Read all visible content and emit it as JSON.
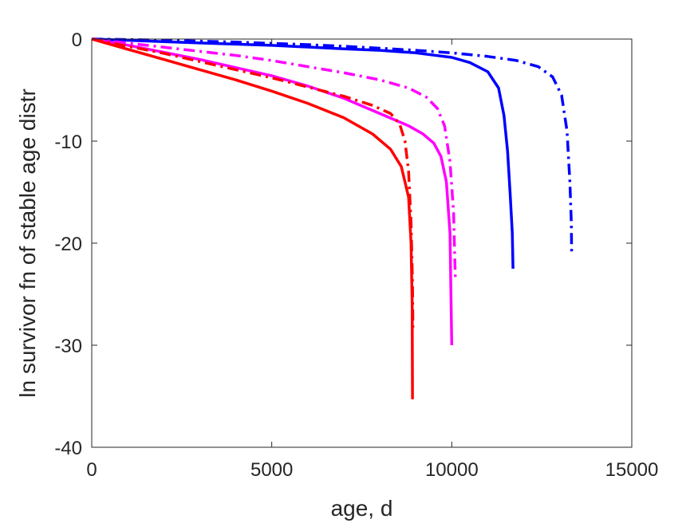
{
  "chart_data": {
    "type": "line",
    "title": "",
    "xlabel": "age, d",
    "ylabel": "ln survivor fn of stable age distr",
    "xlim": [
      0,
      15000
    ],
    "ylim": [
      -40,
      0
    ],
    "xticks": [
      "0",
      "5000",
      "10000",
      "15000"
    ],
    "yticks": [
      "0",
      "-10",
      "-20",
      "-30",
      "-40"
    ],
    "grid": false,
    "legend": "none",
    "series": [
      {
        "color": "#0000ff",
        "dash": "solid",
        "points": [
          [
            0,
            0
          ],
          [
            1000,
            -0.12
          ],
          [
            2000,
            -0.25
          ],
          [
            3000,
            -0.38
          ],
          [
            4000,
            -0.5
          ],
          [
            5000,
            -0.62
          ],
          [
            6000,
            -0.78
          ],
          [
            7000,
            -0.95
          ],
          [
            8000,
            -1.1
          ],
          [
            9000,
            -1.35
          ],
          [
            10000,
            -1.8
          ],
          [
            10500,
            -2.3
          ],
          [
            11000,
            -3.2
          ],
          [
            11300,
            -4.8
          ],
          [
            11450,
            -7.5
          ],
          [
            11550,
            -11
          ],
          [
            11620,
            -15
          ],
          [
            11680,
            -19
          ],
          [
            11700,
            -22.5
          ]
        ]
      },
      {
        "color": "#0000ff",
        "dash": "dashdot",
        "points": [
          [
            0,
            0
          ],
          [
            1000,
            -0.05
          ],
          [
            2000,
            -0.12
          ],
          [
            3000,
            -0.2
          ],
          [
            4000,
            -0.3
          ],
          [
            5000,
            -0.42
          ],
          [
            6000,
            -0.55
          ],
          [
            7000,
            -0.7
          ],
          [
            8000,
            -0.9
          ],
          [
            9000,
            -1.1
          ],
          [
            10000,
            -1.35
          ],
          [
            11000,
            -1.7
          ],
          [
            11800,
            -2.1
          ],
          [
            12400,
            -2.7
          ],
          [
            12800,
            -3.7
          ],
          [
            13050,
            -5.5
          ],
          [
            13200,
            -9
          ],
          [
            13280,
            -14
          ],
          [
            13320,
            -18
          ],
          [
            13330,
            -21
          ]
        ]
      },
      {
        "color": "#ff00ff",
        "dash": "solid",
        "points": [
          [
            0,
            0
          ],
          [
            1000,
            -0.6
          ],
          [
            2000,
            -1.3
          ],
          [
            3000,
            -2.0
          ],
          [
            4000,
            -2.8
          ],
          [
            5000,
            -3.6
          ],
          [
            6000,
            -4.6
          ],
          [
            7000,
            -5.8
          ],
          [
            8000,
            -7.3
          ],
          [
            8800,
            -8.5
          ],
          [
            9200,
            -9.3
          ],
          [
            9500,
            -10.2
          ],
          [
            9700,
            -11.5
          ],
          [
            9850,
            -14
          ],
          [
            9950,
            -19
          ],
          [
            10000,
            -30
          ]
        ]
      },
      {
        "color": "#ff00ff",
        "dash": "dashdot",
        "points": [
          [
            0,
            0
          ],
          [
            1000,
            -0.4
          ],
          [
            2000,
            -0.8
          ],
          [
            3000,
            -1.2
          ],
          [
            4000,
            -1.6
          ],
          [
            5000,
            -2.1
          ],
          [
            6000,
            -2.7
          ],
          [
            7000,
            -3.3
          ],
          [
            8000,
            -4.0
          ],
          [
            8800,
            -4.8
          ],
          [
            9300,
            -5.7
          ],
          [
            9600,
            -6.8
          ],
          [
            9800,
            -8.5
          ],
          [
            9950,
            -12
          ],
          [
            10050,
            -17
          ],
          [
            10100,
            -23.5
          ]
        ]
      },
      {
        "color": "#ff0000",
        "dash": "solid",
        "points": [
          [
            0,
            0
          ],
          [
            1000,
            -1.0
          ],
          [
            2000,
            -2.0
          ],
          [
            3000,
            -3.0
          ],
          [
            4000,
            -4.0
          ],
          [
            5000,
            -5.1
          ],
          [
            6000,
            -6.3
          ],
          [
            7000,
            -7.7
          ],
          [
            7800,
            -9.3
          ],
          [
            8300,
            -10.8
          ],
          [
            8600,
            -12.5
          ],
          [
            8800,
            -15.5
          ],
          [
            8870,
            -20
          ],
          [
            8900,
            -26
          ],
          [
            8910,
            -35.3
          ]
        ]
      },
      {
        "color": "#ff0000",
        "dash": "dashdot",
        "points": [
          [
            0,
            0
          ],
          [
            1000,
            -0.7
          ],
          [
            2000,
            -1.4
          ],
          [
            3000,
            -2.2
          ],
          [
            4000,
            -3.0
          ],
          [
            5000,
            -3.8
          ],
          [
            6000,
            -4.7
          ],
          [
            7000,
            -5.6
          ],
          [
            7800,
            -6.5
          ],
          [
            8300,
            -7.3
          ],
          [
            8550,
            -8.3
          ],
          [
            8700,
            -10
          ],
          [
            8800,
            -13
          ],
          [
            8870,
            -18
          ],
          [
            8910,
            -24
          ],
          [
            8920,
            -28.3
          ]
        ]
      }
    ]
  }
}
